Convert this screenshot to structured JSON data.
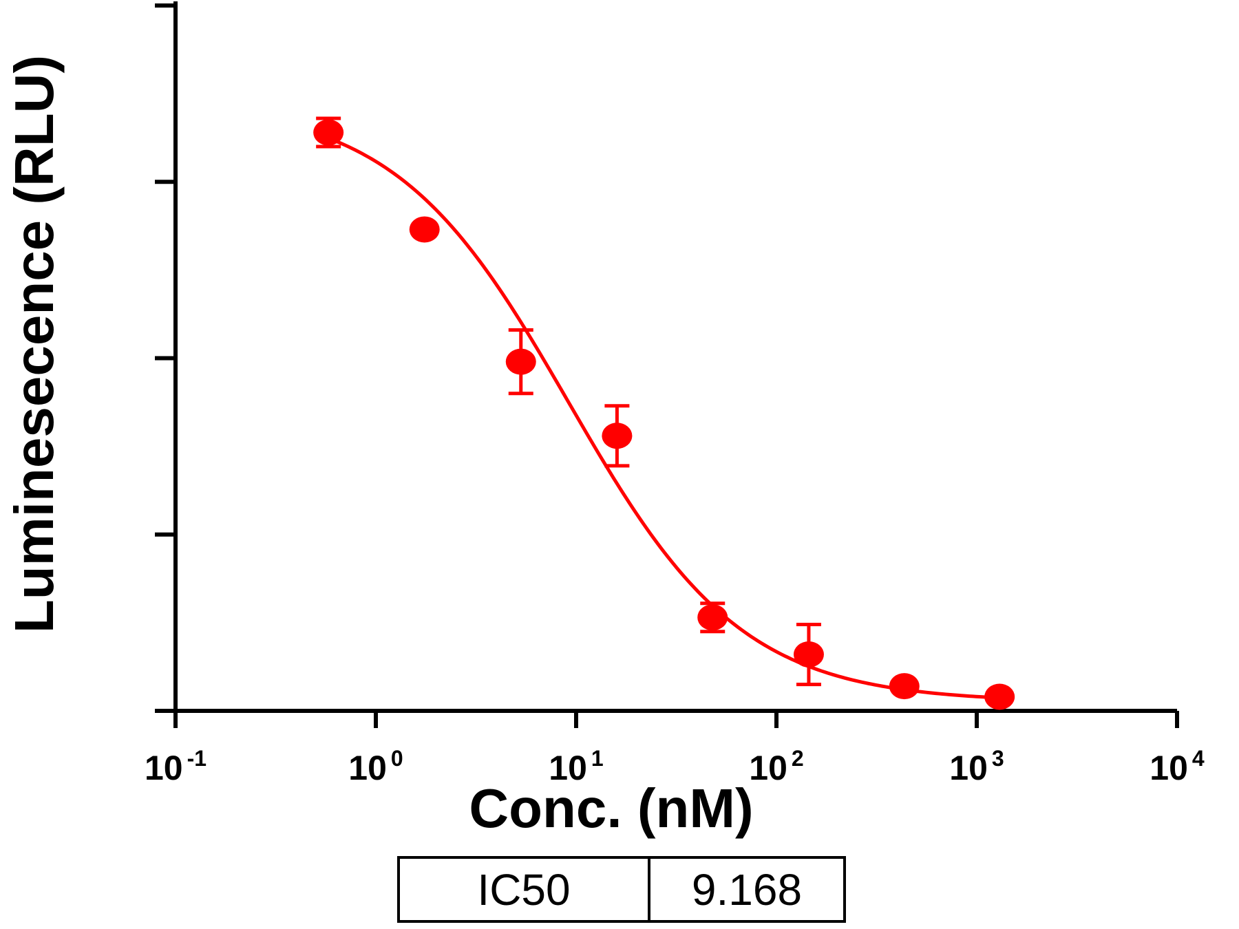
{
  "chart_data": {
    "type": "scatter",
    "xlabel": "Conc. (nM)",
    "ylabel": "Luminesecence (RLU)",
    "x_scale": "log",
    "xlim": [
      0.1,
      10000
    ],
    "ylim": [
      0,
      4
    ],
    "x_ticks": [
      {
        "value": 0.1,
        "base": "10",
        "exp": "-1"
      },
      {
        "value": 1,
        "base": "10",
        "exp": "0"
      },
      {
        "value": 10,
        "base": "10",
        "exp": "1"
      },
      {
        "value": 100,
        "base": "10",
        "exp": "2"
      },
      {
        "value": 1000,
        "base": "10",
        "exp": "3"
      },
      {
        "value": 10000,
        "base": "10",
        "exp": "4"
      }
    ],
    "y_ticks": [
      0,
      1,
      2,
      3,
      4
    ],
    "y_tick_labels_shown": false,
    "grid": false,
    "legend": "none",
    "series": [
      {
        "color": "#ff0000",
        "x": [
          0.58,
          1.75,
          5.3,
          16,
          48,
          145,
          435,
          1300
        ],
        "y": [
          3.28,
          2.73,
          1.98,
          1.56,
          0.53,
          0.32,
          0.14,
          0.08
        ],
        "err": [
          0.08,
          0.03,
          0.18,
          0.17,
          0.08,
          0.17,
          0.03,
          0.03
        ]
      }
    ],
    "fit_curve": {
      "color": "#ff0000",
      "model": "four-parameter logistic",
      "top": 3.45,
      "bottom": 0.05,
      "ic50": 9.168,
      "hill": 1.0,
      "x_range": [
        0.58,
        1300
      ]
    }
  },
  "ic50_table": {
    "label": "IC50",
    "value": "9.168"
  }
}
